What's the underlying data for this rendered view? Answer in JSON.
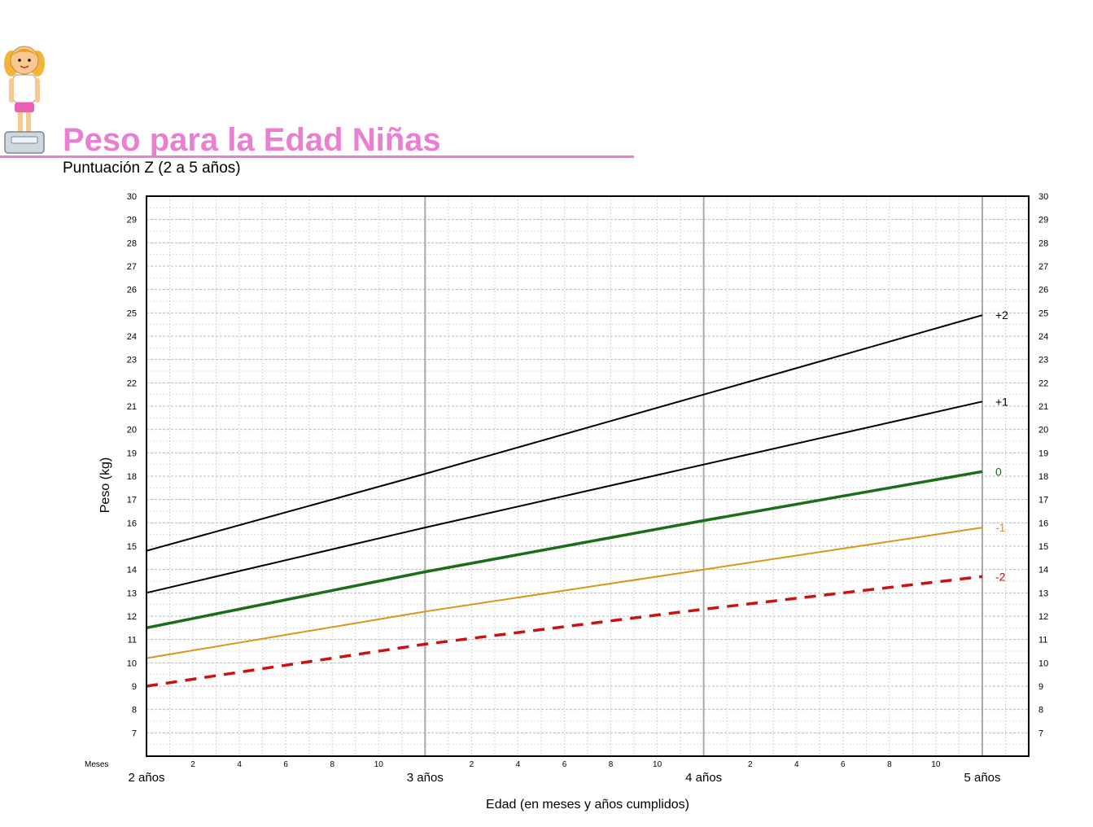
{
  "header": {
    "title": "Peso para la Edad Niñas",
    "subtitle": "Puntuación Z (2 a 5 años)",
    "icon": "girl-on-scale-icon",
    "accent_color": "#e87fd1"
  },
  "chart_data": {
    "type": "line",
    "title": "Peso para la Edad Niñas",
    "subtitle": "Puntuación Z (2 a 5 años)",
    "xlabel": "Edad (en meses y años cumplidos)",
    "ylabel": "Peso (kg)",
    "xlim": [
      24,
      60
    ],
    "ylim": [
      6,
      30
    ],
    "y_ticks": [
      7,
      8,
      9,
      10,
      11,
      12,
      13,
      14,
      15,
      16,
      17,
      18,
      19,
      20,
      21,
      22,
      23,
      24,
      25,
      26,
      27,
      28,
      29,
      30
    ],
    "months_label": "Meses",
    "month_ticks": [
      {
        "x": 26,
        "label": "2"
      },
      {
        "x": 28,
        "label": "4"
      },
      {
        "x": 30,
        "label": "6"
      },
      {
        "x": 32,
        "label": "8"
      },
      {
        "x": 34,
        "label": "10"
      },
      {
        "x": 38,
        "label": "2"
      },
      {
        "x": 40,
        "label": "4"
      },
      {
        "x": 42,
        "label": "6"
      },
      {
        "x": 44,
        "label": "8"
      },
      {
        "x": 46,
        "label": "10"
      },
      {
        "x": 50,
        "label": "2"
      },
      {
        "x": 52,
        "label": "4"
      },
      {
        "x": 54,
        "label": "6"
      },
      {
        "x": 56,
        "label": "8"
      },
      {
        "x": 58,
        "label": "10"
      }
    ],
    "year_ticks": [
      {
        "x": 24,
        "label": "2 años"
      },
      {
        "x": 36,
        "label": "3 años"
      },
      {
        "x": 48,
        "label": "4 años"
      },
      {
        "x": 60,
        "label": "5 años"
      }
    ],
    "grid": true,
    "series": [
      {
        "name": "+2",
        "color": "#000000",
        "dash": false,
        "width": 2,
        "points": [
          [
            24,
            14.8
          ],
          [
            36,
            18.1
          ],
          [
            48,
            21.5
          ],
          [
            60,
            24.9
          ]
        ]
      },
      {
        "name": "+1",
        "color": "#000000",
        "dash": false,
        "width": 2,
        "points": [
          [
            24,
            13.0
          ],
          [
            36,
            15.8
          ],
          [
            48,
            18.5
          ],
          [
            60,
            21.2
          ]
        ]
      },
      {
        "name": "0",
        "color": "#1a6e1a",
        "dash": false,
        "width": 3.5,
        "points": [
          [
            24,
            11.5
          ],
          [
            36,
            13.9
          ],
          [
            48,
            16.1
          ],
          [
            60,
            18.2
          ]
        ]
      },
      {
        "name": "-1",
        "color": "#d9951c",
        "dash": false,
        "width": 2,
        "points": [
          [
            24,
            10.2
          ],
          [
            36,
            12.2
          ],
          [
            48,
            14.0
          ],
          [
            60,
            15.8
          ]
        ]
      },
      {
        "name": "-2",
        "color": "#cc1111",
        "dash": true,
        "width": 3.5,
        "points": [
          [
            24,
            9.0
          ],
          [
            36,
            10.8
          ],
          [
            48,
            12.3
          ],
          [
            60,
            13.7
          ]
        ]
      }
    ]
  }
}
